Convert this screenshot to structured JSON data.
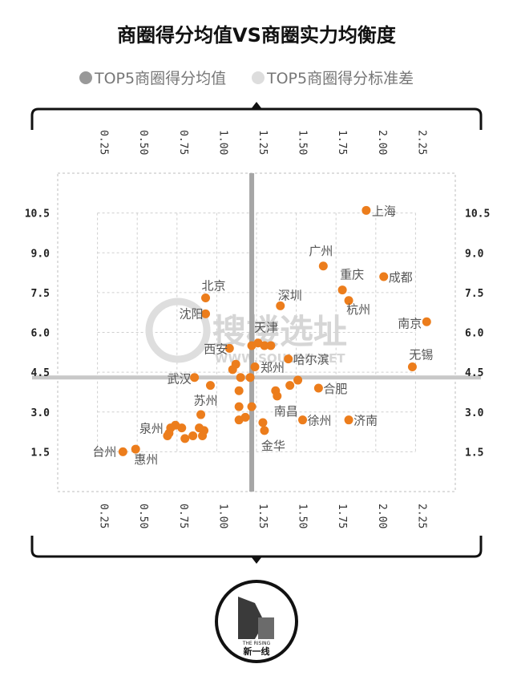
{
  "title": "商圈得分均值VS商圈实力均衡度",
  "legend": [
    {
      "label": "TOP5商圈得分均值",
      "color": "#999999"
    },
    {
      "label": "TOP5商圈得分标准差",
      "color": "#dddddd"
    }
  ],
  "watermark": {
    "brand": "搜楼选址",
    "url": "WWW.SOULOU.NET"
  },
  "logo": {
    "text_top": "THE RISING",
    "text_bottom": "新一线"
  },
  "chart_data": {
    "type": "scatter",
    "title": "商圈得分均值VS商圈实力均衡度",
    "xlabel": "",
    "ylabel": "",
    "xlim": [
      0.0,
      2.5
    ],
    "ylim": [
      0.0,
      12.0
    ],
    "xticks": [
      "0.25",
      "0.50",
      "0.75",
      "1.00",
      "1.25",
      "1.50",
      "1.75",
      "2.00",
      "2.25"
    ],
    "yticks": [
      "1.5",
      "3.0",
      "4.5",
      "6.0",
      "7.5",
      "9.0",
      "10.5"
    ],
    "grid": true,
    "ref_x": 1.22,
    "ref_y": 4.3,
    "point_color": "#ec7d1c",
    "labeled_points": [
      {
        "name": "上海",
        "x": 1.94,
        "y": 10.6
      },
      {
        "name": "广州",
        "x": 1.67,
        "y": 8.5
      },
      {
        "name": "成都",
        "x": 2.05,
        "y": 8.1
      },
      {
        "name": "北京",
        "x": 0.93,
        "y": 7.3
      },
      {
        "name": "深圳",
        "x": 1.4,
        "y": 7.0
      },
      {
        "name": "重庆",
        "x": 1.79,
        "y": 7.6
      },
      {
        "name": "杭州",
        "x": 1.83,
        "y": 7.2
      },
      {
        "name": "沈阳",
        "x": 0.93,
        "y": 6.7
      },
      {
        "name": "南京",
        "x": 2.32,
        "y": 6.4
      },
      {
        "name": "天津",
        "x": 1.26,
        "y": 5.6
      },
      {
        "name": "西安",
        "x": 1.08,
        "y": 5.4
      },
      {
        "name": "哈尔滨",
        "x": 1.45,
        "y": 5.0
      },
      {
        "name": "无锡",
        "x": 2.23,
        "y": 4.7
      },
      {
        "name": "郑州",
        "x": 1.24,
        "y": 4.7
      },
      {
        "name": "武汉",
        "x": 0.86,
        "y": 4.3
      },
      {
        "name": "合肥",
        "x": 1.64,
        "y": 3.9
      },
      {
        "name": "苏州",
        "x": 0.96,
        "y": 4.0
      },
      {
        "name": "南昌",
        "x": 1.38,
        "y": 3.6
      },
      {
        "name": "徐州",
        "x": 1.54,
        "y": 2.7
      },
      {
        "name": "济南",
        "x": 1.83,
        "y": 2.7
      },
      {
        "name": "金华",
        "x": 1.3,
        "y": 2.3
      },
      {
        "name": "泉州",
        "x": 0.69,
        "y": 2.1
      },
      {
        "name": "台州",
        "x": 0.41,
        "y": 1.5
      },
      {
        "name": "惠州",
        "x": 0.49,
        "y": 1.6
      }
    ],
    "unlabeled_points": [
      {
        "x": 1.22,
        "y": 5.5
      },
      {
        "x": 1.3,
        "y": 5.5
      },
      {
        "x": 1.34,
        "y": 5.5
      },
      {
        "x": 1.21,
        "y": 4.3
      },
      {
        "x": 1.12,
        "y": 4.8
      },
      {
        "x": 1.1,
        "y": 4.6
      },
      {
        "x": 1.15,
        "y": 4.3
      },
      {
        "x": 1.14,
        "y": 3.8
      },
      {
        "x": 1.14,
        "y": 3.2
      },
      {
        "x": 1.22,
        "y": 3.2
      },
      {
        "x": 1.14,
        "y": 2.7
      },
      {
        "x": 1.18,
        "y": 2.8
      },
      {
        "x": 1.29,
        "y": 2.6
      },
      {
        "x": 1.37,
        "y": 3.8
      },
      {
        "x": 1.46,
        "y": 4.0
      },
      {
        "x": 1.51,
        "y": 4.2
      },
      {
        "x": 0.9,
        "y": 2.9
      },
      {
        "x": 0.89,
        "y": 2.4
      },
      {
        "x": 0.92,
        "y": 2.3
      },
      {
        "x": 0.91,
        "y": 2.1
      },
      {
        "x": 0.85,
        "y": 2.1
      },
      {
        "x": 0.8,
        "y": 2.0
      },
      {
        "x": 0.78,
        "y": 2.4
      },
      {
        "x": 0.74,
        "y": 2.5
      },
      {
        "x": 0.71,
        "y": 2.4
      },
      {
        "x": 0.7,
        "y": 2.2
      }
    ]
  }
}
